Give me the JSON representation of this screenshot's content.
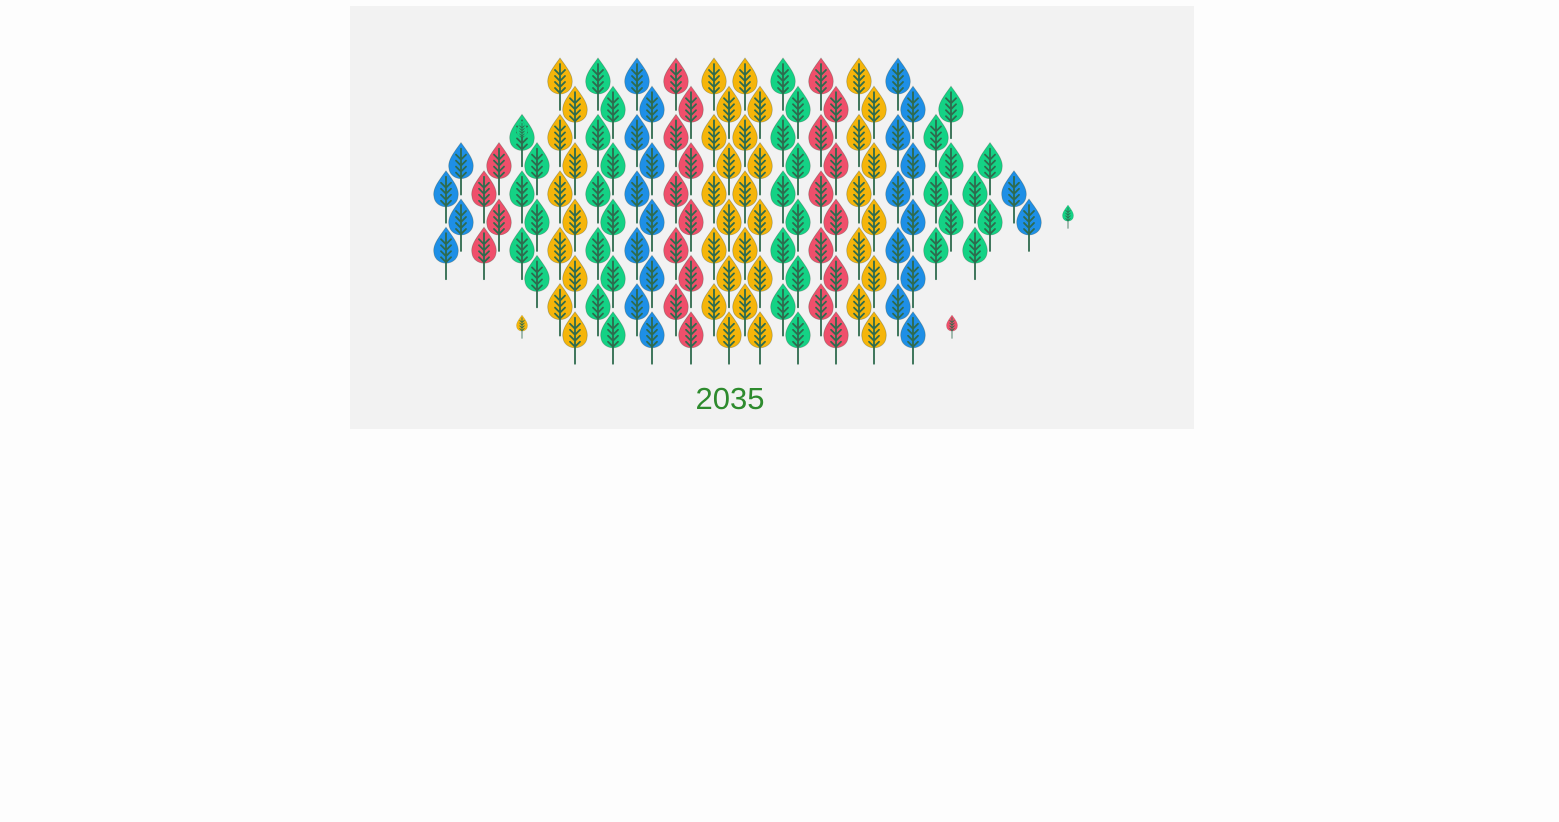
{
  "chart_data": {
    "type": "pictorial-grid",
    "year_label": "2035",
    "colors": {
      "blue": "#1e8fe6",
      "red": "#ef4f6b",
      "green": "#14d285",
      "yellow": "#f5b50a",
      "trunk": "#2e6b4e",
      "background": "#f2f2f2",
      "year_text": "#2e8b2e"
    },
    "columns": [
      {
        "color": "blue",
        "trees": 4,
        "rows": [
          3,
          4,
          5,
          6
        ]
      },
      {
        "color": "red",
        "trees": 4,
        "rows": [
          3,
          4,
          5,
          6
        ]
      },
      {
        "color": "green",
        "trees": 6,
        "rows": [
          2,
          3,
          4,
          5,
          6,
          7
        ]
      },
      {
        "color": "yellow",
        "trees": 10,
        "rows": [
          0,
          1,
          2,
          3,
          4,
          5,
          6,
          7,
          8,
          9
        ]
      },
      {
        "color": "green",
        "trees": 10,
        "rows": [
          0,
          1,
          2,
          3,
          4,
          5,
          6,
          7,
          8,
          9
        ]
      },
      {
        "color": "blue",
        "trees": 10,
        "rows": [
          0,
          1,
          2,
          3,
          4,
          5,
          6,
          7,
          8,
          9
        ]
      },
      {
        "color": "red",
        "trees": 10,
        "rows": [
          0,
          1,
          2,
          3,
          4,
          5,
          6,
          7,
          8,
          9
        ]
      },
      {
        "color": "yellow",
        "trees": 10,
        "rows": [
          0,
          1,
          2,
          3,
          4,
          5,
          6,
          7,
          8,
          9
        ]
      },
      {
        "color": "yellow",
        "trees": 10,
        "rows": [
          0,
          1,
          2,
          3,
          4,
          5,
          6,
          7,
          8,
          9
        ]
      },
      {
        "color": "green",
        "trees": 10,
        "rows": [
          0,
          1,
          2,
          3,
          4,
          5,
          6,
          7,
          8,
          9
        ]
      },
      {
        "color": "red",
        "trees": 10,
        "rows": [
          0,
          1,
          2,
          3,
          4,
          5,
          6,
          7,
          8,
          9
        ]
      },
      {
        "color": "yellow",
        "trees": 10,
        "rows": [
          0,
          1,
          2,
          3,
          4,
          5,
          6,
          7,
          8,
          9
        ]
      },
      {
        "color": "blue",
        "trees": 10,
        "rows": [
          0,
          1,
          2,
          3,
          4,
          5,
          6,
          7,
          8,
          9
        ]
      },
      {
        "color": "green",
        "trees": 6,
        "rows": [
          1,
          2,
          3,
          4,
          5,
          6
        ]
      },
      {
        "color": "green",
        "trees": 4,
        "rows": [
          3,
          4,
          5,
          6
        ]
      },
      {
        "color": "blue",
        "trees": 2,
        "rows": [
          4,
          5
        ]
      }
    ],
    "small_trees": [
      {
        "color": "green",
        "near_column": 2,
        "row": 1.5
      },
      {
        "color": "yellow",
        "near_column": 2,
        "row": 8.4
      },
      {
        "color": "red",
        "near_column": 13,
        "row": 8.4
      },
      {
        "color": "green",
        "near_column": 16,
        "row": 4.5
      }
    ]
  }
}
